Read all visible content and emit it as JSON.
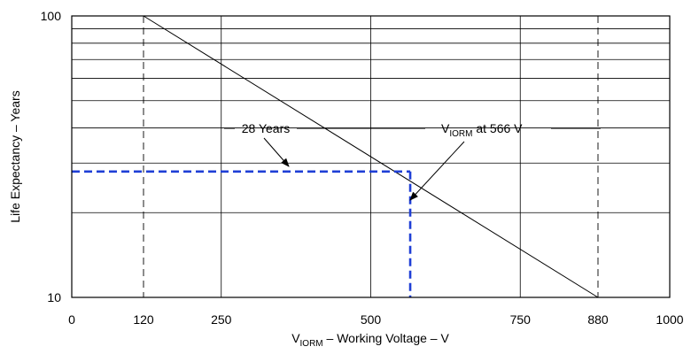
{
  "chart_data": {
    "type": "line",
    "xlabel_main": "V",
    "xlabel_sub": "IORM",
    "xlabel_rest": " – Working Voltage – V",
    "ylabel": "Life Expectancy – Years",
    "x_scale": "linear",
    "y_scale": "log",
    "xlim": [
      0,
      1000
    ],
    "ylim": [
      10,
      100
    ],
    "x_ticks": [
      0,
      120,
      250,
      500,
      750,
      880,
      1000
    ],
    "x_tick_labels": [
      "0",
      "120",
      "250",
      "500",
      "750",
      "880",
      "1000"
    ],
    "y_tick_labels": [
      "10",
      "100"
    ],
    "grid": true,
    "dashed_vertical_lines": [
      120,
      880
    ],
    "series": [
      {
        "x": [
          120,
          880
        ],
        "y": [
          100,
          10
        ],
        "color": "#000000"
      }
    ],
    "marker_point": {
      "x": 566,
      "y": 28,
      "color": "#1f3fd6"
    },
    "annotations": {
      "years_label": "28 Years",
      "viorm_main": "V",
      "viorm_sub": "IORM",
      "viorm_rest": " at 566 V"
    }
  }
}
